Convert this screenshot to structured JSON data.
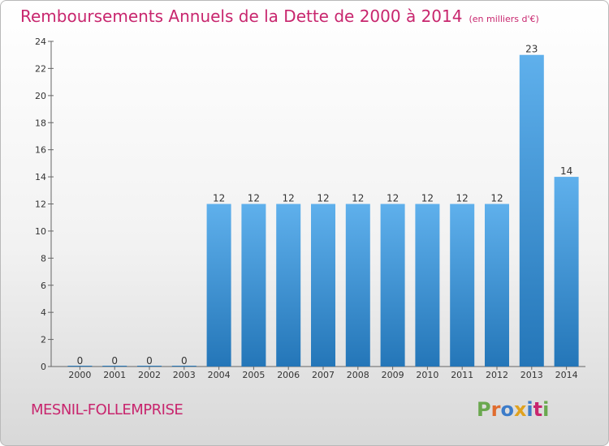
{
  "page": {
    "title": "Remboursements Annuels de la Dette de 2000 à 2014",
    "unit": "(en milliers d'€)",
    "place": "MESNIL-FOLLEMPRISE",
    "logo": {
      "text": "Proxiti",
      "colors": [
        "#6aa84f",
        "#e06c2f",
        "#3d7cc9",
        "#e0a21f",
        "#3d7cc9",
        "#c8266e",
        "#6aa84f"
      ]
    }
  },
  "chart_data": {
    "type": "bar",
    "categories": [
      "2000",
      "2001",
      "2002",
      "2003",
      "2004",
      "2005",
      "2006",
      "2007",
      "2008",
      "2009",
      "2010",
      "2011",
      "2012",
      "2013",
      "2014"
    ],
    "values": [
      0,
      0,
      0,
      0,
      12,
      12,
      12,
      12,
      12,
      12,
      12,
      12,
      12,
      23,
      14
    ],
    "data_labels": [
      "0",
      "0",
      "0",
      "0",
      "12",
      "12",
      "12",
      "12",
      "12",
      "12",
      "12",
      "12",
      "12",
      "23",
      "14"
    ],
    "ylim": [
      0,
      24
    ],
    "yticks": [
      0,
      2,
      4,
      6,
      8,
      10,
      12,
      14,
      16,
      18,
      20,
      22,
      24
    ],
    "xlabel": "",
    "ylabel": "",
    "grid": false,
    "bar_color": "#4a9be0"
  }
}
